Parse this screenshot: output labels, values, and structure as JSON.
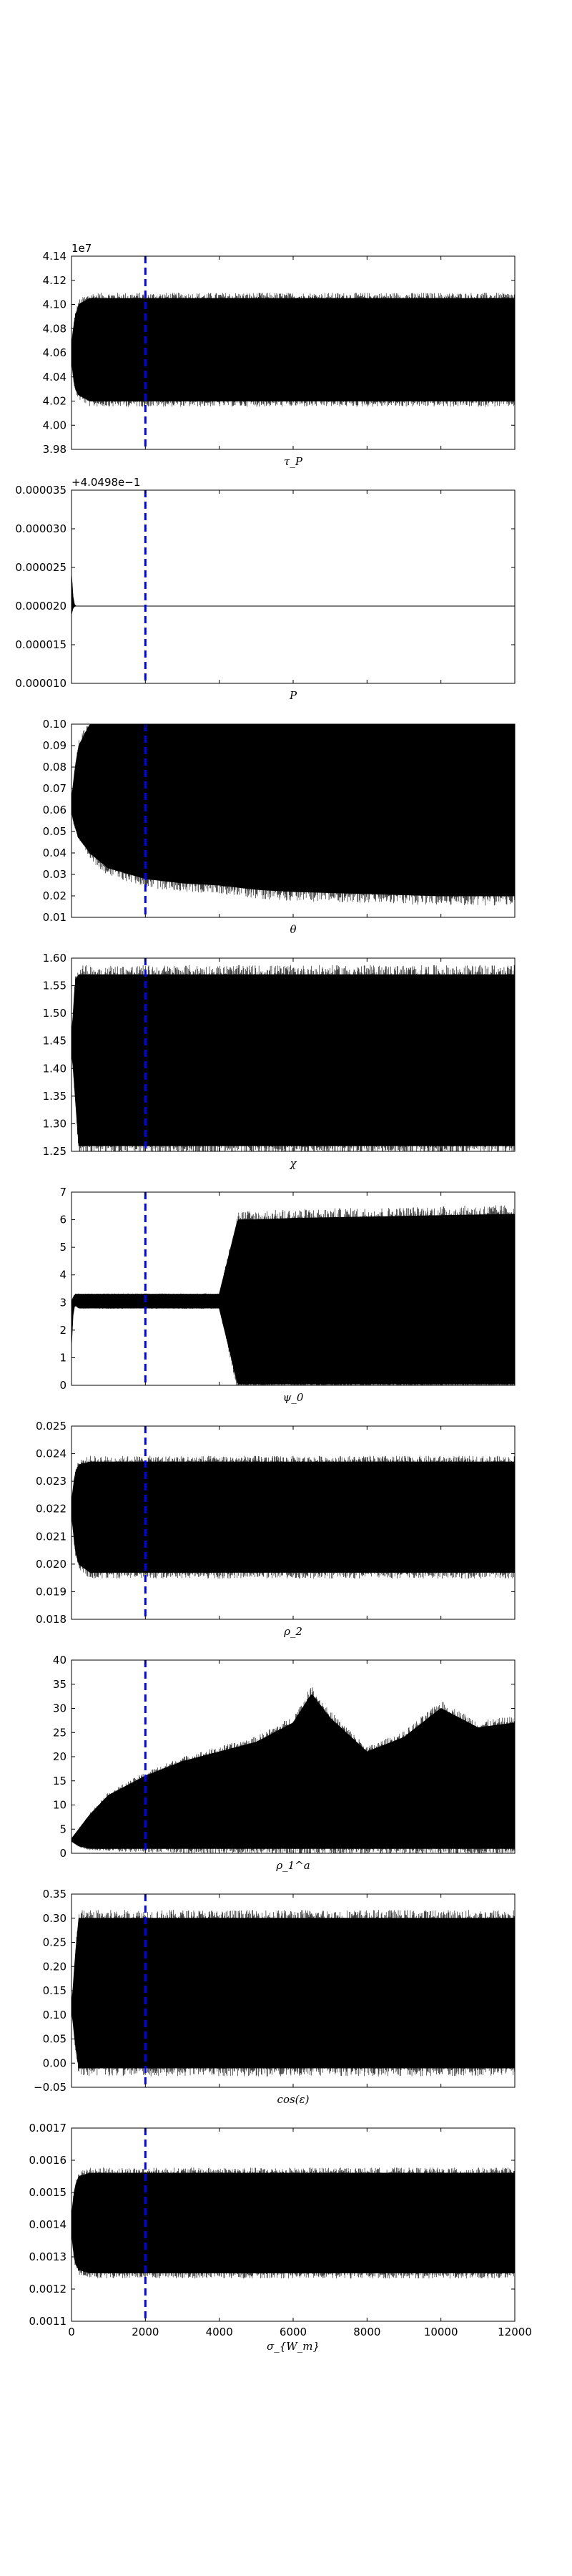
{
  "chart_data": [
    {
      "type": "line",
      "title": "",
      "xlabel": "τ_P",
      "ylabel": "",
      "offset_text": "1e7",
      "xlim": [
        0,
        12000
      ],
      "ylim": [
        3.98,
        4.14
      ],
      "yticks": [
        "3.98",
        "4.00",
        "4.02",
        "4.04",
        "4.06",
        "4.08",
        "4.10",
        "4.12",
        "4.14"
      ],
      "xticks": [],
      "burn_in_x": 2000,
      "series": [
        {
          "x": [
            0,
            50,
            100,
            200,
            500,
            1000,
            2000,
            4000,
            6000,
            8000,
            10000,
            12000
          ],
          "y_low": [
            4.055,
            4.04,
            4.03,
            4.025,
            4.02,
            4.02,
            4.02,
            4.02,
            4.02,
            4.02,
            4.02,
            4.02
          ],
          "y_high": [
            4.065,
            4.08,
            4.09,
            4.1,
            4.105,
            4.105,
            4.105,
            4.105,
            4.105,
            4.105,
            4.105,
            4.105
          ]
        }
      ]
    },
    {
      "type": "line",
      "title": "",
      "xlabel": "P",
      "ylabel": "",
      "offset_text": "+4.0498e−1",
      "xlim": [
        0,
        12000
      ],
      "ylim": [
        1e-05,
        3.5e-05
      ],
      "yticks": [
        "0.000010",
        "0.000015",
        "0.000020",
        "0.000025",
        "0.000030",
        "0.000035"
      ],
      "xticks": [],
      "burn_in_x": 2000,
      "series": [
        {
          "x": [
            0,
            50,
            100,
            200,
            500,
            1000,
            2000,
            4000,
            6000,
            8000,
            10000,
            12000
          ],
          "y_low": [
            1.9e-05,
            1.99e-05,
            2e-05,
            2e-05,
            2e-05,
            2e-05,
            2e-05,
            2e-05,
            2e-05,
            2e-05,
            2e-05,
            2e-05
          ],
          "y_high": [
            2.4e-05,
            2.05e-05,
            2e-05,
            2e-05,
            2e-05,
            2e-05,
            2e-05,
            2e-05,
            2e-05,
            2e-05,
            2e-05,
            2e-05
          ]
        }
      ]
    },
    {
      "type": "line",
      "title": "",
      "xlabel": "θ",
      "ylabel": "",
      "offset_text": "",
      "xlim": [
        0,
        12000
      ],
      "ylim": [
        0.01,
        0.1
      ],
      "yticks": [
        "0.01",
        "0.02",
        "0.03",
        "0.04",
        "0.05",
        "0.06",
        "0.07",
        "0.08",
        "0.09",
        "0.10"
      ],
      "xticks": [],
      "burn_in_x": 2000,
      "series": [
        {
          "x": [
            0,
            50,
            100,
            200,
            500,
            1000,
            2000,
            3000,
            4000,
            5000,
            6000,
            8000,
            10000,
            12000
          ],
          "y_low": [
            0.06,
            0.055,
            0.052,
            0.047,
            0.04,
            0.033,
            0.028,
            0.026,
            0.025,
            0.023,
            0.022,
            0.021,
            0.02,
            0.02
          ],
          "y_high": [
            0.065,
            0.072,
            0.08,
            0.09,
            0.1,
            0.1,
            0.1,
            0.1,
            0.1,
            0.1,
            0.1,
            0.1,
            0.1,
            0.1
          ]
        }
      ]
    },
    {
      "type": "line",
      "title": "",
      "xlabel": "χ",
      "ylabel": "",
      "offset_text": "",
      "xlim": [
        0,
        12000
      ],
      "ylim": [
        1.25,
        1.6
      ],
      "yticks": [
        "1.25",
        "1.30",
        "1.35",
        "1.40",
        "1.45",
        "1.50",
        "1.55",
        "1.60"
      ],
      "xticks": [],
      "burn_in_x": 2000,
      "series": [
        {
          "x": [
            0,
            50,
            100,
            200,
            500,
            1000,
            2000,
            4000,
            6000,
            8000,
            10000,
            12000
          ],
          "y_low": [
            1.43,
            1.4,
            1.35,
            1.26,
            1.26,
            1.26,
            1.26,
            1.26,
            1.26,
            1.26,
            1.26,
            1.26
          ],
          "y_high": [
            1.46,
            1.5,
            1.56,
            1.57,
            1.57,
            1.57,
            1.57,
            1.57,
            1.57,
            1.57,
            1.57,
            1.57
          ]
        }
      ]
    },
    {
      "type": "line",
      "title": "",
      "xlabel": "ψ_0",
      "ylabel": "",
      "offset_text": "",
      "xlim": [
        0,
        12000
      ],
      "ylim": [
        0,
        7
      ],
      "yticks": [
        "0",
        "1",
        "2",
        "3",
        "4",
        "5",
        "6",
        "7"
      ],
      "xticks": [],
      "burn_in_x": 2000,
      "series": [
        {
          "x": [
            0,
            50,
            100,
            200,
            500,
            1000,
            2000,
            3000,
            4000,
            4500,
            5000,
            6000,
            8000,
            10000,
            12000
          ],
          "y_low": [
            1.5,
            2.8,
            2.9,
            2.8,
            2.8,
            2.8,
            2.8,
            2.8,
            2.8,
            0.05,
            0.05,
            0.05,
            0.05,
            0.05,
            0.05
          ],
          "y_high": [
            3.0,
            3.2,
            3.3,
            3.3,
            3.3,
            3.3,
            3.3,
            3.3,
            3.3,
            6.0,
            6.0,
            6.05,
            6.1,
            6.15,
            6.2
          ]
        }
      ]
    },
    {
      "type": "line",
      "title": "",
      "xlabel": "ρ_2",
      "ylabel": "",
      "offset_text": "",
      "xlim": [
        0,
        12000
      ],
      "ylim": [
        0.018,
        0.025
      ],
      "yticks": [
        "0.018",
        "0.019",
        "0.020",
        "0.021",
        "0.022",
        "0.023",
        "0.024",
        "0.025"
      ],
      "xticks": [],
      "burn_in_x": 2000,
      "series": [
        {
          "x": [
            0,
            50,
            100,
            200,
            500,
            1000,
            2000,
            4000,
            6000,
            8000,
            10000,
            12000
          ],
          "y_low": [
            0.0218,
            0.0212,
            0.0205,
            0.02,
            0.0197,
            0.0197,
            0.0197,
            0.0197,
            0.0197,
            0.0197,
            0.0197,
            0.0197
          ],
          "y_high": [
            0.0222,
            0.0228,
            0.0233,
            0.0236,
            0.0237,
            0.0237,
            0.0237,
            0.0237,
            0.0237,
            0.0237,
            0.0237,
            0.0237
          ]
        }
      ]
    },
    {
      "type": "line",
      "title": "",
      "xlabel": "ρ_1^a",
      "ylabel": "",
      "offset_text": "",
      "xlim": [
        0,
        12000
      ],
      "ylim": [
        0,
        40
      ],
      "yticks": [
        "0",
        "5",
        "10",
        "15",
        "20",
        "25",
        "30",
        "35",
        "40"
      ],
      "xticks": [],
      "burn_in_x": 2000,
      "series": [
        {
          "x": [
            0,
            100,
            200,
            500,
            1000,
            2000,
            3000,
            4000,
            5000,
            6000,
            6500,
            7000,
            8000,
            9000,
            10000,
            11000,
            12000
          ],
          "y_low": [
            2.5,
            2.0,
            1.5,
            1.0,
            1.0,
            1.0,
            1.0,
            1.0,
            1.0,
            1.0,
            1.0,
            1.0,
            1.0,
            1.0,
            1.0,
            1.0,
            1.0
          ],
          "y_high": [
            3.0,
            4.0,
            5.0,
            8.0,
            12.0,
            16.0,
            19.0,
            21.0,
            23.0,
            27.0,
            33.0,
            28.0,
            21.0,
            24.0,
            30.0,
            26.0,
            27.0
          ]
        }
      ]
    },
    {
      "type": "line",
      "title": "",
      "xlabel": "cos(ε)",
      "ylabel": "",
      "offset_text": "",
      "xlim": [
        0,
        12000
      ],
      "ylim": [
        -0.05,
        0.35
      ],
      "yticks": [
        "−0.05",
        "0.00",
        "0.05",
        "0.10",
        "0.15",
        "0.20",
        "0.25",
        "0.30",
        "0.35"
      ],
      "xticks": [],
      "burn_in_x": 2000,
      "series": [
        {
          "x": [
            0,
            50,
            100,
            200,
            500,
            1000,
            2000,
            4000,
            6000,
            8000,
            10000,
            12000
          ],
          "y_low": [
            0.11,
            0.08,
            0.04,
            -0.01,
            -0.01,
            -0.01,
            -0.01,
            -0.01,
            -0.01,
            -0.01,
            -0.01,
            -0.01
          ],
          "y_high": [
            0.12,
            0.16,
            0.22,
            0.3,
            0.3,
            0.3,
            0.3,
            0.3,
            0.3,
            0.3,
            0.3,
            0.3
          ]
        }
      ]
    },
    {
      "type": "line",
      "title": "",
      "xlabel": "σ_{W_m}",
      "ylabel": "",
      "offset_text": "",
      "xlim": [
        0,
        12000
      ],
      "ylim": [
        0.0011,
        0.0017
      ],
      "yticks": [
        "0.0011",
        "0.0012",
        "0.0013",
        "0.0014",
        "0.0015",
        "0.0016",
        "0.0017"
      ],
      "xticks": [
        "0",
        "2000",
        "4000",
        "6000",
        "8000",
        "10000",
        "12000"
      ],
      "burn_in_x": 2000,
      "series": [
        {
          "x": [
            0,
            50,
            100,
            200,
            500,
            1000,
            2000,
            4000,
            6000,
            8000,
            10000,
            12000
          ],
          "y_low": [
            0.00138,
            0.00132,
            0.00128,
            0.00126,
            0.00125,
            0.00125,
            0.00125,
            0.00125,
            0.00125,
            0.00125,
            0.00125,
            0.00125
          ],
          "y_high": [
            0.00142,
            0.00148,
            0.00152,
            0.00155,
            0.00156,
            0.00156,
            0.00156,
            0.00156,
            0.00156,
            0.00156,
            0.00156,
            0.00156
          ]
        }
      ]
    }
  ]
}
